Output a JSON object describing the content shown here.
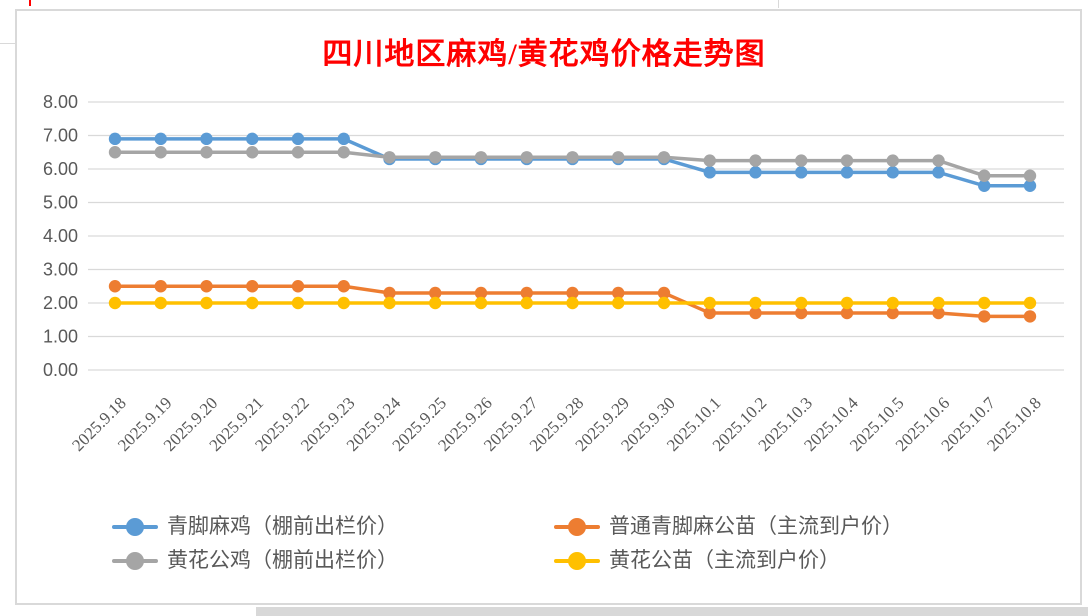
{
  "chart_data": {
    "type": "line",
    "title": "四川地区麻鸡/黄花鸡价格走势图",
    "title_color": "#FF0000",
    "marker": "circle",
    "grid": "horizontal",
    "legend_position": "bottom",
    "categories": [
      "2025.9.18",
      "2025.9.19",
      "2025.9.20",
      "2025.9.21",
      "2025.9.22",
      "2025.9.23",
      "2025.9.24",
      "2025.9.25",
      "2025.9.26",
      "2025.9.27",
      "2025.9.28",
      "2025.9.29",
      "2025.9.30",
      "2025.10.1",
      "2025.10.2",
      "2025.10.3",
      "2025.10.4",
      "2025.10.5",
      "2025.10.6",
      "2025.10.7",
      "2025.10.8"
    ],
    "series": [
      {
        "name": "青脚麻鸡（棚前出栏价）",
        "color": "#5B9BD5",
        "values": [
          6.9,
          6.9,
          6.9,
          6.9,
          6.9,
          6.9,
          6.3,
          6.3,
          6.3,
          6.3,
          6.3,
          6.3,
          6.3,
          5.9,
          5.9,
          5.9,
          5.9,
          5.9,
          5.9,
          5.5,
          5.5
        ]
      },
      {
        "name": "普通青脚麻公苗（主流到户价）",
        "color": "#ED7D31",
        "values": [
          2.5,
          2.5,
          2.5,
          2.5,
          2.5,
          2.5,
          2.3,
          2.3,
          2.3,
          2.3,
          2.3,
          2.3,
          2.3,
          1.7,
          1.7,
          1.7,
          1.7,
          1.7,
          1.7,
          1.6,
          1.6
        ]
      },
      {
        "name": "黄花公鸡（棚前出栏价）",
        "color": "#A5A5A5",
        "values": [
          6.5,
          6.5,
          6.5,
          6.5,
          6.5,
          6.5,
          6.35,
          6.35,
          6.35,
          6.35,
          6.35,
          6.35,
          6.35,
          6.25,
          6.25,
          6.25,
          6.25,
          6.25,
          6.25,
          5.8,
          5.8
        ]
      },
      {
        "name": "黄花公苗（主流到户价）",
        "color": "#FFC000",
        "values": [
          2.0,
          2.0,
          2.0,
          2.0,
          2.0,
          2.0,
          2.0,
          2.0,
          2.0,
          2.0,
          2.0,
          2.0,
          2.0,
          2.0,
          2.0,
          2.0,
          2.0,
          2.0,
          2.0,
          2.0,
          2.0
        ]
      }
    ],
    "y_axis": {
      "min": 0,
      "max": 8,
      "step": 1,
      "tick_labels": [
        "8.00",
        "7.00",
        "6.00",
        "5.00",
        "4.00",
        "3.00",
        "2.00",
        "1.00",
        "0.00"
      ]
    },
    "ylim": [
      0,
      8
    ],
    "colors": {
      "gridline": "#D9D9D9",
      "axis_text": "#595959"
    }
  }
}
